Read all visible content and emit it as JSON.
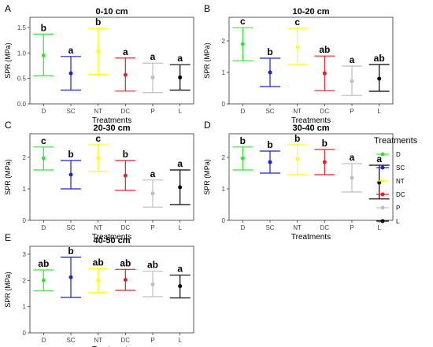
{
  "x_axis_label": "Treatments",
  "y_axis_label": "SPR (MPa)",
  "legend": {
    "title": "Treatments",
    "placement": "right",
    "items": [
      {
        "label": "D",
        "color": "#2ee82e"
      },
      {
        "label": "SC",
        "color": "#1f1fd6"
      },
      {
        "label": "NT",
        "color": "#ffff1a"
      },
      {
        "label": "DC",
        "color": "#e0202a"
      },
      {
        "label": "P",
        "color": "#bfbfbf"
      },
      {
        "label": "L",
        "color": "#000000"
      }
    ]
  },
  "chart_data": [
    {
      "type": "errorbar",
      "panel": "A",
      "title": "0-10 cm",
      "categories": [
        "D",
        "SC",
        "NT",
        "DC",
        "P",
        "L"
      ],
      "mean": [
        0.95,
        0.6,
        1.03,
        0.57,
        0.52,
        0.52
      ],
      "lower": [
        0.55,
        0.27,
        0.58,
        0.25,
        0.22,
        0.27
      ],
      "upper": [
        1.37,
        0.93,
        1.48,
        0.9,
        0.8,
        0.77
      ],
      "letters": [
        "b",
        "a",
        "b",
        "a",
        "a",
        "a"
      ],
      "ylim": [
        0,
        1.7
      ],
      "yticks": [
        "0.0",
        "0.5",
        "1.0",
        "1.5"
      ],
      "ytick_values": [
        0,
        0.5,
        1.0,
        1.5
      ],
      "grid": false
    },
    {
      "type": "errorbar",
      "panel": "B",
      "title": "10-20 cm",
      "categories": [
        "D",
        "SC",
        "NT",
        "DC",
        "P",
        "L"
      ],
      "mean": [
        1.9,
        1.0,
        1.8,
        0.97,
        0.72,
        0.8
      ],
      "lower": [
        1.37,
        0.55,
        1.25,
        0.42,
        0.27,
        0.4
      ],
      "upper": [
        2.42,
        1.45,
        2.4,
        1.52,
        1.2,
        1.25
      ],
      "letters": [
        "c",
        "b",
        "c",
        "ab",
        "a",
        "ab"
      ],
      "ylim": [
        0,
        2.75
      ],
      "yticks": [
        "0",
        "1",
        "2"
      ],
      "ytick_values": [
        0,
        1,
        2
      ],
      "grid": false
    },
    {
      "type": "errorbar",
      "panel": "C",
      "title": "20-30 cm",
      "categories": [
        "D",
        "SC",
        "NT",
        "DC",
        "P",
        "L"
      ],
      "mean": [
        1.97,
        1.45,
        1.97,
        1.42,
        0.85,
        1.05
      ],
      "lower": [
        1.6,
        1.0,
        1.55,
        0.95,
        0.42,
        0.5
      ],
      "upper": [
        2.33,
        1.9,
        2.4,
        1.9,
        1.28,
        1.6
      ],
      "letters": [
        "c",
        "b",
        "c",
        "b",
        "a",
        "a"
      ],
      "ylim": [
        0,
        2.75
      ],
      "yticks": [
        "0",
        "1",
        "2"
      ],
      "ytick_values": [
        0,
        1,
        2
      ],
      "grid": false
    },
    {
      "type": "errorbar",
      "panel": "D",
      "title": "30-40 cm",
      "categories": [
        "D",
        "SC",
        "NT",
        "DC",
        "P",
        "L"
      ],
      "mean": [
        1.97,
        1.85,
        1.95,
        1.85,
        1.35,
        1.2
      ],
      "lower": [
        1.6,
        1.5,
        1.45,
        1.45,
        0.9,
        0.68
      ],
      "upper": [
        2.33,
        2.2,
        2.4,
        2.25,
        1.8,
        1.75
      ],
      "letters": [
        "b",
        "b",
        "b",
        "b",
        "a",
        "a"
      ],
      "ylim": [
        0,
        2.75
      ],
      "yticks": [
        "0",
        "1",
        "2"
      ],
      "ytick_values": [
        0,
        1,
        2
      ],
      "grid": false
    },
    {
      "type": "errorbar",
      "panel": "E",
      "title": "40-50 cm",
      "categories": [
        "D",
        "SC",
        "NT",
        "DC",
        "P",
        "L"
      ],
      "mean": [
        2.0,
        2.12,
        2.0,
        2.02,
        1.85,
        1.78
      ],
      "lower": [
        1.6,
        1.35,
        1.55,
        1.62,
        1.38,
        1.33
      ],
      "upper": [
        2.4,
        2.88,
        2.45,
        2.42,
        2.35,
        2.2
      ],
      "letters": [
        "ab",
        "b",
        "ab",
        "ab",
        "ab",
        "a"
      ],
      "ylim": [
        0,
        3.3
      ],
      "yticks": [
        "0",
        "1",
        "2",
        "3"
      ],
      "ytick_values": [
        0,
        1,
        2,
        3
      ],
      "grid": false
    }
  ]
}
